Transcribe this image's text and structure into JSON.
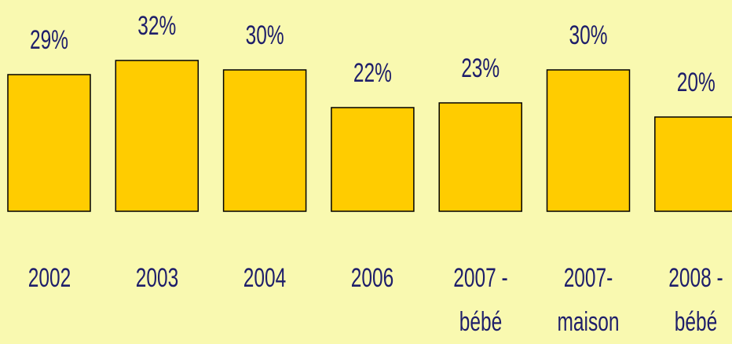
{
  "chart_data": {
    "type": "bar",
    "categories": [
      "2002",
      "2003",
      "2004",
      "2006",
      "2007 - bébé",
      "2007- maison",
      "2008 - bébé"
    ],
    "values": [
      29,
      32,
      30,
      22,
      23,
      30,
      20
    ],
    "value_labels": [
      "29%",
      "32%",
      "30%",
      "22%",
      "23%",
      "30%",
      "20%"
    ],
    "color": "#ffcc00"
  }
}
